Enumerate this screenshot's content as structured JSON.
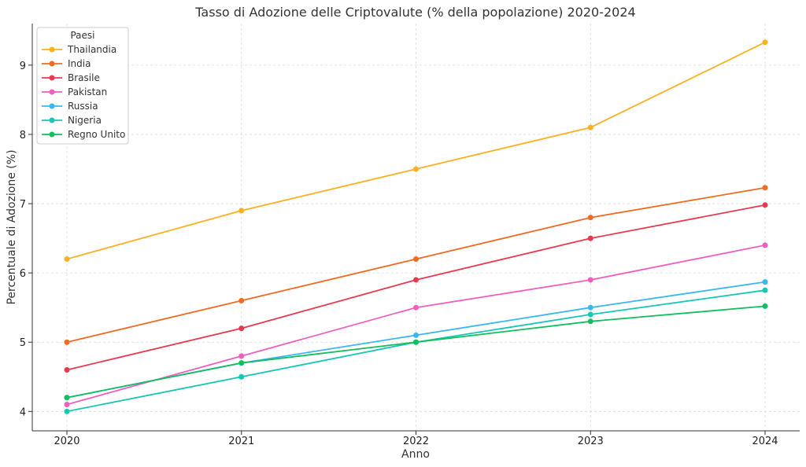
{
  "chart_data": {
    "type": "line",
    "title": "Tasso di Adozione delle Criptovalute (% della popolazione) 2020-2024",
    "xlabel": "Anno",
    "ylabel": "Percentuale di Adozione (%)",
    "x": [
      "2020",
      "2021",
      "2022",
      "2023",
      "2024"
    ],
    "ylim": [
      3.72,
      9.6
    ],
    "yticks": [
      4,
      5,
      6,
      7,
      8,
      9
    ],
    "grid": true,
    "legend": {
      "title": "Paesi",
      "placement": "top-left"
    },
    "series": [
      {
        "name": "Thailandia",
        "color": "#FDB022",
        "values": [
          6.2,
          6.9,
          7.5,
          8.1,
          9.33
        ]
      },
      {
        "name": "India",
        "color": "#F26B21",
        "values": [
          5.0,
          5.6,
          6.2,
          6.8,
          7.23
        ]
      },
      {
        "name": "Brasile",
        "color": "#E83A4F",
        "values": [
          4.6,
          5.2,
          5.9,
          6.5,
          6.98
        ]
      },
      {
        "name": "Pakistan",
        "color": "#F25EBF",
        "values": [
          4.1,
          4.8,
          5.5,
          5.9,
          6.4
        ]
      },
      {
        "name": "Russia",
        "color": "#38B8F2",
        "values": [
          4.2,
          4.7,
          5.1,
          5.5,
          5.87
        ]
      },
      {
        "name": "Nigeria",
        "color": "#17C7B5",
        "values": [
          4.0,
          4.5,
          5.0,
          5.4,
          5.75
        ]
      },
      {
        "name": "Regno Unito",
        "color": "#13BE5E",
        "values": [
          4.2,
          4.7,
          5.0,
          5.3,
          5.52
        ]
      }
    ]
  }
}
